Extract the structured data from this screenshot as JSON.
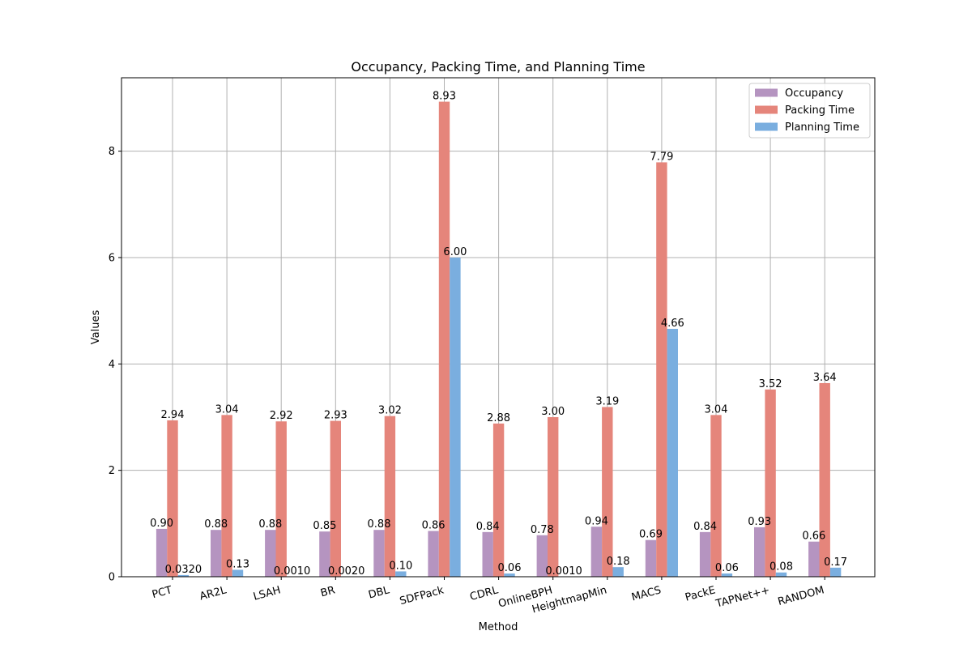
{
  "chart_data": {
    "type": "bar",
    "title": "Occupancy, Packing Time, and Planning Time",
    "xlabel": "Method",
    "ylabel": "Values",
    "categories": [
      "PCT",
      "AR2L",
      "LSAH",
      "BR",
      "DBL",
      "SDFPack",
      "CDRL",
      "OnlineBPH",
      "HeightmapMin",
      "MACS",
      "PackE",
      "TAPNet++",
      "RANDOM"
    ],
    "series": [
      {
        "name": "Occupancy",
        "color": "#b594c0",
        "values": [
          0.9,
          0.88,
          0.88,
          0.85,
          0.88,
          0.86,
          0.84,
          0.78,
          0.94,
          0.69,
          0.84,
          0.93,
          0.66
        ],
        "labels": [
          "0.90",
          "0.88",
          "0.88",
          "0.85",
          "0.88",
          "0.86",
          "0.84",
          "0.78",
          "0.94",
          "0.69",
          "0.84",
          "0.93",
          "0.66"
        ]
      },
      {
        "name": "Packing Time",
        "color": "#e5857b",
        "values": [
          2.94,
          3.04,
          2.92,
          2.93,
          3.02,
          8.93,
          2.88,
          3.0,
          3.19,
          7.79,
          3.04,
          3.52,
          3.64
        ],
        "labels": [
          "2.94",
          "3.04",
          "2.92",
          "2.93",
          "3.02",
          "8.93",
          "2.88",
          "3.00",
          "3.19",
          "7.79",
          "3.04",
          "3.52",
          "3.64"
        ]
      },
      {
        "name": "Planning Time",
        "color": "#7aaedf",
        "values": [
          0.032,
          0.13,
          0.001,
          0.002,
          0.1,
          6.0,
          0.06,
          0.001,
          0.18,
          4.66,
          0.06,
          0.08,
          0.17
        ],
        "labels": [
          "0.0320",
          "0.13",
          "0.0010",
          "0.0020",
          "0.10",
          "6.00",
          "0.06",
          "0.0010",
          "0.18",
          "4.66",
          "0.06",
          "0.08",
          "0.17"
        ]
      }
    ],
    "yticks": [
      0,
      2,
      4,
      6,
      8
    ],
    "ylim": [
      0,
      9.38
    ],
    "grid": true,
    "legend_position": "top-right"
  }
}
